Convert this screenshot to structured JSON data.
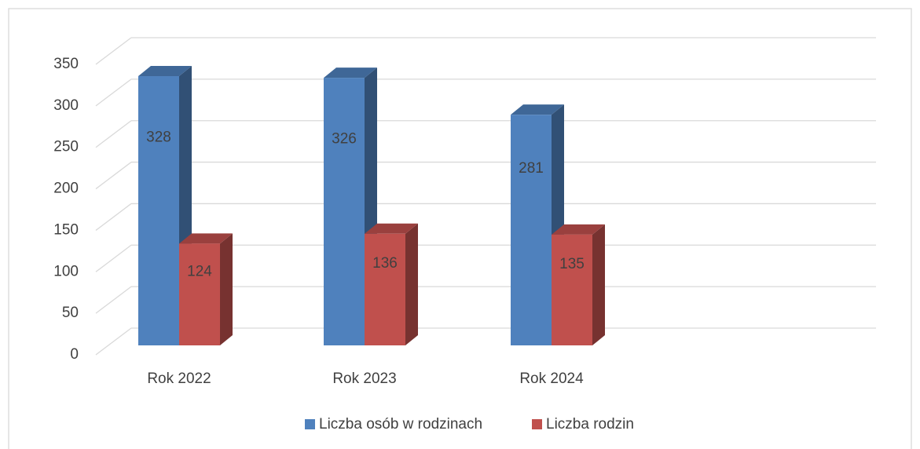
{
  "chart_data": {
    "type": "bar3d",
    "categories": [
      "Rok 2022",
      "Rok 2023",
      "Rok 2024"
    ],
    "series": [
      {
        "name": "Liczba osób w rodzinach",
        "color": "#4f81bd",
        "values": [
          328,
          326,
          281
        ]
      },
      {
        "name": "Liczba rodzin",
        "color": "#c0504d",
        "values": [
          124,
          136,
          135
        ]
      }
    ],
    "ylim": [
      0,
      350
    ],
    "yticks": [
      0,
      50,
      100,
      150,
      200,
      250,
      300,
      350
    ],
    "grid": true
  }
}
